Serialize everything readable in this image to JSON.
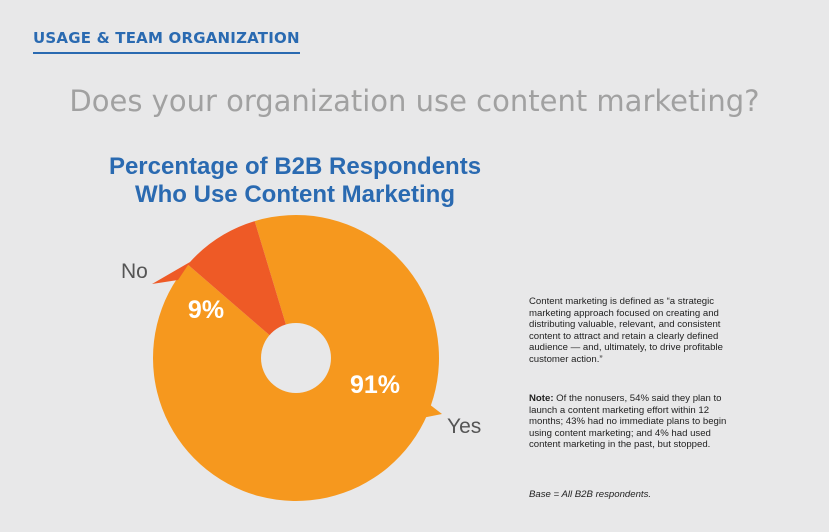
{
  "header": {
    "section_title": "USAGE & TEAM ORGANIZATION",
    "question": "Does your organization use content marketing?"
  },
  "chart_data": {
    "type": "pie",
    "title_lines": [
      "Percentage of B2B Respondents",
      "Who Use Content Marketing"
    ],
    "slices": [
      {
        "label": "Yes",
        "value": 91,
        "value_label": "91%",
        "color": "#f6981e"
      },
      {
        "label": "No",
        "value": 9,
        "value_label": "9%",
        "color": "#ee5a26"
      }
    ],
    "donut_hole_color": "#e8e8e9"
  },
  "sidebar": {
    "definition": "Content marketing is defined as “a strategic marketing approach focused on creating and distributing valuable, relevant, and consistent content to attract and retain a clearly defined audience — and, ultimately, to drive profitable customer action.”",
    "note_label": "Note:",
    "note_text": " Of the nonusers, 54% said they plan to launch a content marketing effort within 12 months; 43% had no immediate plans to begin using content marketing; and 4% had used content marketing in the past, but stopped.",
    "base": "Base = All B2B respondents."
  }
}
